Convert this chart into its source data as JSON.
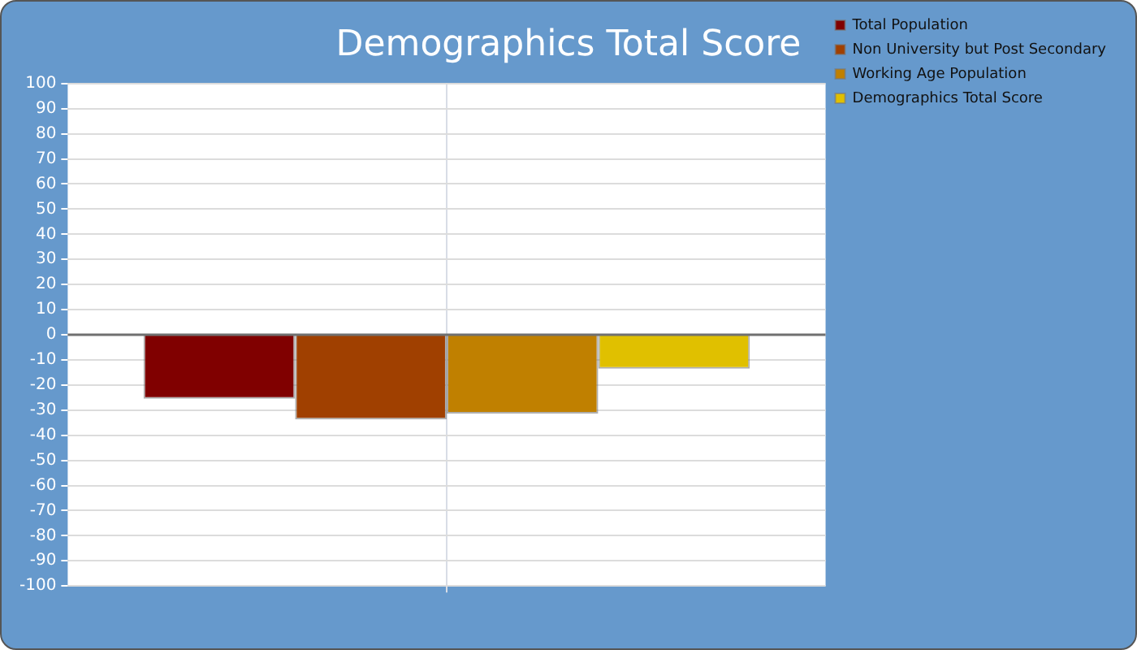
{
  "chart_data": {
    "type": "bar",
    "title": "Demographics Total Score",
    "categories": [
      null
    ],
    "series": [
      {
        "name": "Total Population",
        "color": "#800000",
        "values": [
          -25.5
        ]
      },
      {
        "name": "Non University but Post Secondary",
        "color": "#a04000",
        "values": [
          -33.7
        ]
      },
      {
        "name": "Working Age Population",
        "color": "#c08000",
        "values": [
          -31.4
        ]
      },
      {
        "name": "Demographics Total Score",
        "color": "#e0c000",
        "values": [
          -13.5
        ]
      }
    ],
    "ylim": [
      -100,
      100
    ],
    "yticks": [
      -100,
      -90,
      -80,
      -70,
      -60,
      -50,
      -40,
      -30,
      -20,
      -10,
      0,
      10,
      20,
      30,
      40,
      50,
      60,
      70,
      80,
      90,
      100
    ],
    "grid": true,
    "legend": "top right"
  }
}
